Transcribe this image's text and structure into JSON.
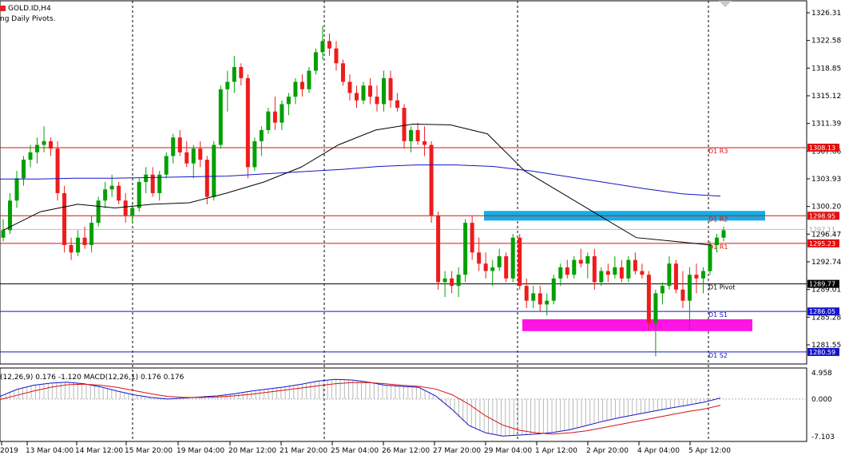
{
  "header": {
    "symbol": "GOLD.ID,H4",
    "indicator": "ng Daily Pivots."
  },
  "macd_label": "(12,26,9) 0.176 -1.120 MACD(12,26,1) 0.176 0.176",
  "colors": {
    "bull": "#00a000",
    "bear": "#ee1c1c",
    "ma_long": "#1414c8",
    "ma_short": "#000000",
    "macd_line": "#1414c8",
    "signal_line": "#d81010",
    "resistance_zone": "#14aee6",
    "support_zone": "#ff14e6"
  },
  "chart_data": [
    {
      "type": "candlestick",
      "title": "GOLD.ID,H4",
      "ylim": [
        1278.5,
        1328.0
      ],
      "y_ticks": [
        "1326.31",
        "1322.58",
        "1318.85",
        "1315.12",
        "1311.39",
        "1307.66",
        "1303.93",
        "1300.20",
        "1296.47",
        "1292.74",
        "1289.01",
        "1285.28",
        "1281.55"
      ],
      "x_ticks": [
        "2019",
        "13 Mar 04:00",
        "14 Mar 12:00",
        "15 Mar 20:00",
        "19 Mar 04:00",
        "20 Mar 12:00",
        "21 Mar 20:00",
        "25 Mar 04:00",
        "26 Mar 12:00",
        "27 Mar 20:00",
        "29 Mar 04:00",
        "1 Apr 12:00",
        "2 Apr 20:00",
        "4 Apr 04:00",
        "5 Apr 12:00"
      ],
      "ohlc_approx": [
        [
          1296.0,
          1298.5,
          1295.5,
          1297.0
        ],
        [
          1297.0,
          1302.0,
          1296.5,
          1301.0
        ],
        [
          1301.0,
          1305.0,
          1300.0,
          1304.0
        ],
        [
          1304.0,
          1307.0,
          1303.0,
          1306.5
        ],
        [
          1306.5,
          1308.5,
          1305.5,
          1307.5
        ],
        [
          1307.5,
          1309.5,
          1306.0,
          1308.5
        ],
        [
          1308.5,
          1311.0,
          1307.5,
          1309.0
        ],
        [
          1309.0,
          1309.5,
          1307.0,
          1308.0
        ],
        [
          1308.0,
          1309.0,
          1301.0,
          1302.0
        ],
        [
          1302.0,
          1303.0,
          1294.0,
          1295.0
        ],
        [
          1295.0,
          1296.0,
          1293.0,
          1294.0
        ],
        [
          1294.0,
          1297.0,
          1293.5,
          1296.0
        ],
        [
          1296.0,
          1297.5,
          1294.5,
          1295.0
        ],
        [
          1295.0,
          1299.0,
          1294.0,
          1298.0
        ],
        [
          1298.0,
          1301.5,
          1297.5,
          1301.0
        ],
        [
          1301.0,
          1303.5,
          1300.0,
          1302.5
        ],
        [
          1302.5,
          1304.5,
          1301.5,
          1303.0
        ],
        [
          1303.0,
          1303.5,
          1300.5,
          1301.0
        ],
        [
          1301.0,
          1302.0,
          1298.0,
          1299.0
        ],
        [
          1299.0,
          1300.5,
          1298.0,
          1300.0
        ],
        [
          1300.0,
          1304.0,
          1299.5,
          1303.5
        ],
        [
          1303.5,
          1305.5,
          1302.0,
          1304.5
        ],
        [
          1304.5,
          1305.5,
          1301.5,
          1302.0
        ],
        [
          1302.0,
          1305.0,
          1301.0,
          1304.5
        ],
        [
          1304.5,
          1307.5,
          1304.0,
          1307.0
        ],
        [
          1307.0,
          1310.0,
          1306.0,
          1309.5
        ],
        [
          1309.5,
          1310.5,
          1307.0,
          1307.5
        ],
        [
          1307.5,
          1309.0,
          1305.5,
          1306.0
        ],
        [
          1306.0,
          1308.5,
          1304.0,
          1308.0
        ],
        [
          1308.0,
          1309.0,
          1305.5,
          1306.5
        ],
        [
          1306.5,
          1307.0,
          1300.5,
          1301.5
        ],
        [
          1301.5,
          1309.0,
          1301.0,
          1308.5
        ],
        [
          1308.5,
          1316.5,
          1308.0,
          1316.0
        ],
        [
          1316.0,
          1318.5,
          1313.0,
          1317.0
        ],
        [
          1317.0,
          1320.5,
          1315.5,
          1319.0
        ],
        [
          1319.0,
          1319.5,
          1316.5,
          1317.5
        ],
        [
          1317.5,
          1318.0,
          1304.0,
          1305.5
        ],
        [
          1305.5,
          1309.5,
          1305.0,
          1309.0
        ],
        [
          1309.0,
          1311.0,
          1307.0,
          1310.5
        ],
        [
          1310.5,
          1313.5,
          1310.0,
          1313.0
        ],
        [
          1313.0,
          1315.0,
          1310.5,
          1311.5
        ],
        [
          1311.5,
          1314.5,
          1310.5,
          1314.0
        ],
        [
          1314.0,
          1315.5,
          1312.5,
          1315.0
        ],
        [
          1315.0,
          1317.5,
          1314.0,
          1317.0
        ],
        [
          1317.0,
          1318.0,
          1315.0,
          1316.0
        ],
        [
          1316.0,
          1319.0,
          1315.5,
          1318.5
        ],
        [
          1318.5,
          1321.5,
          1318.0,
          1321.0
        ],
        [
          1321.0,
          1324.5,
          1320.0,
          1322.5
        ],
        [
          1322.5,
          1323.5,
          1320.5,
          1321.5
        ],
        [
          1321.5,
          1322.5,
          1318.5,
          1319.5
        ],
        [
          1319.5,
          1320.0,
          1316.5,
          1317.0
        ],
        [
          1317.0,
          1318.0,
          1314.5,
          1315.5
        ],
        [
          1315.5,
          1316.5,
          1313.5,
          1314.5
        ],
        [
          1314.5,
          1317.0,
          1314.0,
          1316.5
        ],
        [
          1316.5,
          1317.5,
          1314.0,
          1315.0
        ],
        [
          1315.0,
          1316.5,
          1313.0,
          1314.0
        ],
        [
          1314.0,
          1318.5,
          1313.0,
          1317.5
        ],
        [
          1317.5,
          1318.5,
          1313.5,
          1314.5
        ],
        [
          1314.5,
          1315.5,
          1313.0,
          1313.5
        ],
        [
          1313.5,
          1314.0,
          1308.0,
          1309.0
        ],
        [
          1309.0,
          1311.0,
          1307.5,
          1310.5
        ],
        [
          1310.5,
          1311.5,
          1308.5,
          1309.0
        ],
        [
          1309.0,
          1311.0,
          1307.0,
          1308.5
        ],
        [
          1308.5,
          1309.0,
          1298.0,
          1299.0
        ],
        [
          1299.0,
          1299.5,
          1289.0,
          1290.0
        ],
        [
          1290.0,
          1291.5,
          1288.0,
          1290.5
        ],
        [
          1290.5,
          1291.5,
          1288.5,
          1289.5
        ],
        [
          1289.5,
          1292.0,
          1288.0,
          1291.0
        ],
        [
          1291.0,
          1298.5,
          1290.0,
          1298.0
        ],
        [
          1298.0,
          1299.0,
          1293.0,
          1294.0
        ],
        [
          1294.0,
          1296.0,
          1291.5,
          1292.5
        ],
        [
          1292.5,
          1294.0,
          1290.5,
          1291.5
        ],
        [
          1291.5,
          1293.0,
          1289.5,
          1292.0
        ],
        [
          1292.0,
          1294.5,
          1291.5,
          1293.5
        ],
        [
          1293.5,
          1294.0,
          1290.0,
          1290.5
        ],
        [
          1290.5,
          1296.5,
          1290.0,
          1296.0
        ],
        [
          1296.0,
          1296.5,
          1289.0,
          1289.5
        ],
        [
          1289.5,
          1290.5,
          1286.5,
          1287.5
        ],
        [
          1287.5,
          1289.5,
          1286.5,
          1288.5
        ],
        [
          1288.5,
          1289.5,
          1286.0,
          1287.0
        ],
        [
          1287.0,
          1288.5,
          1285.5,
          1287.5
        ],
        [
          1287.5,
          1291.0,
          1287.0,
          1290.5
        ],
        [
          1290.5,
          1292.5,
          1289.5,
          1292.0
        ],
        [
          1292.0,
          1293.0,
          1290.5,
          1291.0
        ],
        [
          1291.0,
          1293.5,
          1290.5,
          1293.0
        ],
        [
          1293.0,
          1294.5,
          1292.0,
          1292.5
        ],
        [
          1292.5,
          1294.0,
          1290.5,
          1293.5
        ],
        [
          1293.5,
          1294.5,
          1289.0,
          1290.0
        ],
        [
          1290.0,
          1292.0,
          1289.5,
          1291.5
        ],
        [
          1291.5,
          1292.5,
          1290.0,
          1291.0
        ],
        [
          1291.0,
          1293.5,
          1290.5,
          1292.0
        ],
        [
          1292.0,
          1293.0,
          1290.0,
          1290.5
        ],
        [
          1290.5,
          1293.5,
          1290.0,
          1293.0
        ],
        [
          1293.0,
          1294.0,
          1291.0,
          1291.5
        ],
        [
          1291.5,
          1292.5,
          1290.5,
          1291.0
        ],
        [
          1291.0,
          1291.5,
          1283.5,
          1284.5
        ],
        [
          1284.5,
          1289.0,
          1280.0,
          1288.5
        ],
        [
          1288.5,
          1290.0,
          1287.0,
          1289.5
        ],
        [
          1289.5,
          1293.5,
          1289.0,
          1292.5
        ],
        [
          1292.5,
          1293.0,
          1288.5,
          1289.0
        ],
        [
          1289.0,
          1291.5,
          1286.5,
          1287.5
        ],
        [
          1287.5,
          1292.0,
          1283.5,
          1291.0
        ],
        [
          1291.0,
          1292.5,
          1288.5,
          1290.5
        ],
        [
          1290.5,
          1292.0,
          1288.5,
          1291.5
        ],
        [
          1291.5,
          1295.5,
          1291.0,
          1295.0
        ],
        [
          1295.0,
          1296.5,
          1294.0,
          1296.0
        ],
        [
          1296.0,
          1297.5,
          1295.5,
          1297.0
        ]
      ],
      "ma_long_approx": [
        1303.9,
        1303.9,
        1304.0,
        1304.0,
        1304.1,
        1304.2,
        1304.3,
        1304.6,
        1304.9,
        1305.2,
        1305.6,
        1305.8,
        1305.8,
        1305.6,
        1305.0,
        1304.2,
        1303.4,
        1302.6,
        1301.9,
        1301.6
      ],
      "ma_short_approx": [
        1297.0,
        1299.5,
        1300.5,
        1300.0,
        1300.5,
        1300.7,
        1302.0,
        1303.5,
        1305.5,
        1308.5,
        1310.5,
        1311.3,
        1311.2,
        1310.0,
        1305.0,
        1302.0,
        1299.0,
        1296.0,
        1295.5,
        1295.0
      ],
      "horizontal_lines": [
        {
          "label": "D1 R3",
          "value": "1308.13",
          "color": "#e01010"
        },
        {
          "label": "D1 R2",
          "value": "1298.95",
          "color": "#e01010"
        },
        {
          "label": "D1 R1",
          "value": "1295.23",
          "color": "#e01010"
        },
        {
          "label": "D1 Pivot",
          "value": "1289.77",
          "color": "#000000"
        },
        {
          "label": "D1 S1",
          "value": "1286.05",
          "color": "#1414c8"
        },
        {
          "label": "D1 S2",
          "value": "1280.59",
          "color": "#1414c8"
        }
      ],
      "current_price": "1297.11",
      "zones": [
        {
          "name": "resistance",
          "from": 1298.3,
          "to": 1299.6
        },
        {
          "name": "support",
          "from": 1283.4,
          "to": 1285.0
        }
      ]
    },
    {
      "type": "macd",
      "title": "",
      "ylim": [
        -7.103,
        4.958
      ],
      "y_ticks": [
        "4.958",
        "0.000",
        "-7.103"
      ],
      "macd_approx": [
        0.5,
        1.8,
        2.6,
        3.0,
        3.2,
        2.9,
        2.3,
        1.5,
        0.8,
        0.3,
        0.0,
        0.2,
        0.4,
        0.6,
        1.0,
        1.5,
        1.9,
        2.3,
        2.8,
        3.4,
        3.7,
        3.6,
        3.2,
        2.6,
        2.4,
        2.2,
        0.6,
        -2.0,
        -5.0,
        -6.4,
        -7.0,
        -6.8,
        -6.6,
        -6.3,
        -5.8,
        -5.0,
        -4.2,
        -3.5,
        -2.9,
        -2.3,
        -1.7,
        -1.2,
        -0.6,
        0.2
      ],
      "signal_approx": [
        -0.1,
        0.7,
        1.5,
        2.2,
        2.7,
        2.8,
        2.6,
        2.2,
        1.6,
        1.0,
        0.5,
        0.3,
        0.3,
        0.4,
        0.6,
        0.9,
        1.3,
        1.7,
        2.1,
        2.5,
        2.9,
        3.1,
        3.1,
        2.9,
        2.6,
        2.4,
        1.9,
        0.8,
        -1.0,
        -3.2,
        -4.9,
        -5.9,
        -6.4,
        -6.6,
        -6.4,
        -6.0,
        -5.4,
        -4.8,
        -4.2,
        -3.6,
        -3.0,
        -2.4,
        -1.9,
        -1.2
      ]
    }
  ]
}
